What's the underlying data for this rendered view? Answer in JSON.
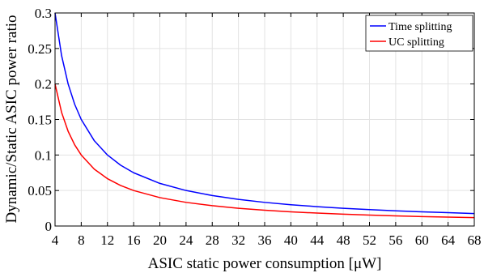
{
  "chart_data": {
    "type": "line",
    "xlabel": "ASIC static power consumption [μW]",
    "ylabel": "Dynamic/Static ASIC power ratio",
    "xlim": [
      4,
      68
    ],
    "ylim": [
      0,
      0.3
    ],
    "xticks": [
      4,
      8,
      12,
      16,
      20,
      24,
      28,
      32,
      36,
      40,
      44,
      48,
      52,
      56,
      60,
      64,
      68
    ],
    "xtick_labels": [
      "4",
      "8",
      "12",
      "16",
      "20",
      "24",
      "28",
      "32",
      "36",
      "40",
      "44",
      "48",
      "52",
      "56",
      "60",
      "64",
      "68"
    ],
    "yticks": [
      0,
      0.05,
      0.1,
      0.15,
      0.2,
      0.25,
      0.3
    ],
    "ytick_labels": [
      "0",
      "0.05",
      "0.1",
      "0.15",
      "0.2",
      "0.25",
      "0.3"
    ],
    "grid": true,
    "legend_position": "top-right",
    "x": [
      4,
      5,
      6,
      7,
      8,
      10,
      12,
      14,
      16,
      20,
      24,
      28,
      32,
      36,
      40,
      44,
      48,
      52,
      56,
      60,
      64,
      68
    ],
    "series": [
      {
        "name": "Time splitting",
        "color": "#0000ff",
        "values": [
          0.3,
          0.24,
          0.2,
          0.1714,
          0.15,
          0.12,
          0.1,
          0.0857,
          0.075,
          0.06,
          0.05,
          0.0429,
          0.0375,
          0.0333,
          0.03,
          0.0273,
          0.025,
          0.0231,
          0.0214,
          0.02,
          0.0188,
          0.0176
        ]
      },
      {
        "name": "UC splitting",
        "color": "#ff0000",
        "values": [
          0.2,
          0.16,
          0.1333,
          0.1143,
          0.1,
          0.08,
          0.0667,
          0.0571,
          0.05,
          0.04,
          0.0333,
          0.0286,
          0.025,
          0.0222,
          0.02,
          0.0182,
          0.0167,
          0.0154,
          0.0143,
          0.0133,
          0.0125,
          0.0118
        ]
      }
    ]
  }
}
